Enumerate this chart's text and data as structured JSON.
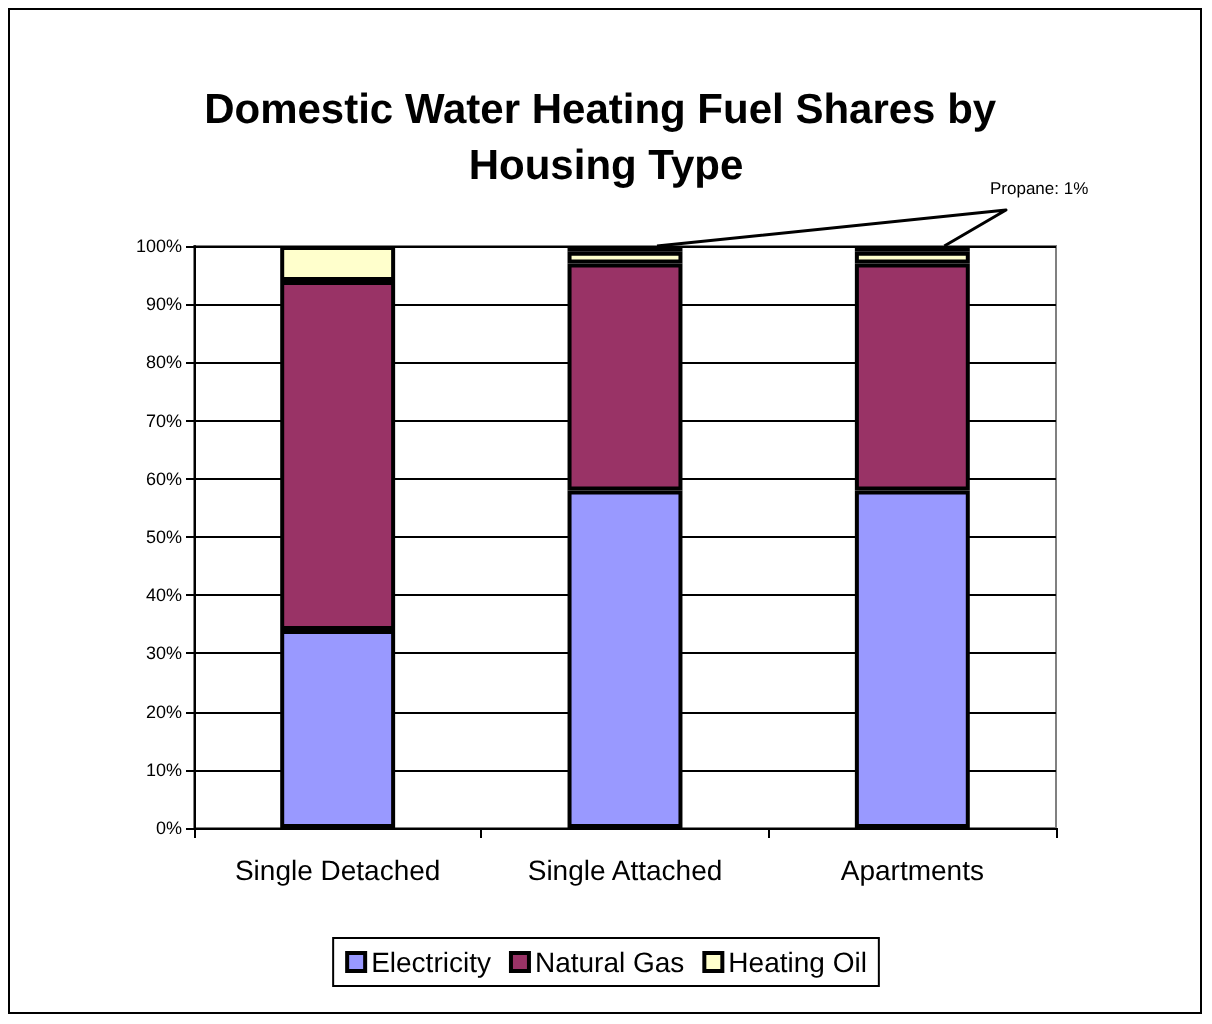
{
  "chart_data": {
    "type": "bar",
    "title": "Domestic Water Heating Fuel Shares by Housing Type",
    "stacked": true,
    "categories": [
      "Single Detached",
      "Single Attached",
      "Apartments"
    ],
    "series": [
      {
        "name": "Electricity",
        "color": "#9999ff",
        "values": [
          34,
          58,
          58
        ]
      },
      {
        "name": "Natural Gas",
        "color": "#993366",
        "values": [
          60,
          39,
          39
        ]
      },
      {
        "name": "Heating Oil",
        "color": "#ffffcc",
        "values": [
          6,
          2,
          2
        ]
      },
      {
        "color": "#000000",
        "values": [
          null,
          1,
          1
        ]
      }
    ],
    "ylim": [
      0,
      100
    ],
    "yticks": [
      {
        "value": 0,
        "label": "0%"
      },
      {
        "value": 10,
        "label": "10%"
      },
      {
        "value": 20,
        "label": "20%"
      },
      {
        "value": 30,
        "label": "30%"
      },
      {
        "value": 40,
        "label": "40%"
      },
      {
        "value": 50,
        "label": "50%"
      },
      {
        "value": 60,
        "label": "60%"
      },
      {
        "value": 70,
        "label": "70%"
      },
      {
        "value": 80,
        "label": "80%"
      },
      {
        "value": 90,
        "label": "90%"
      },
      {
        "value": 100,
        "label": "100%"
      }
    ],
    "grid": "y",
    "legend": "bottom",
    "annotations": [
      "Propane: 1%"
    ]
  }
}
